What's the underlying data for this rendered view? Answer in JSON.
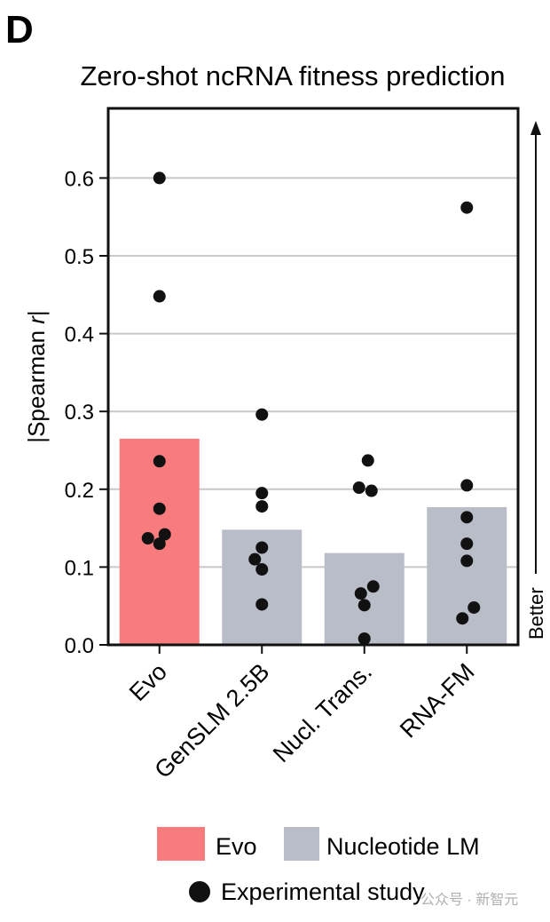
{
  "panel_label": "D",
  "watermark": "公众号 · 新智元",
  "chart_data": {
    "type": "bar",
    "title": "Zero-shot ncRNA fitness prediction",
    "ylabel_prefix": "|Spearman ",
    "ylabel_var": "r",
    "ylabel_suffix": "|",
    "xlabel": "",
    "ylim": [
      0,
      0.66
    ],
    "yticks": [
      "0.0",
      "0.1",
      "0.2",
      "0.3",
      "0.4",
      "0.5",
      "0.6"
    ],
    "grid": true,
    "categories": [
      "Evo",
      "GenSLM 2.5B",
      "Nucl. Trans.",
      "RNA-FM"
    ],
    "bar_values": [
      0.265,
      0.148,
      0.118,
      0.177
    ],
    "bar_groups": [
      "Evo",
      "Nucleotide LM",
      "Nucleotide LM",
      "Nucleotide LM"
    ],
    "points": [
      [
        0.6,
        0.448,
        0.236,
        0.175,
        0.142,
        0.137,
        0.13
      ],
      [
        0.296,
        0.195,
        0.178,
        0.125,
        0.11,
        0.097,
        0.052
      ],
      [
        0.237,
        0.202,
        0.198,
        0.075,
        0.066,
        0.051,
        0.008
      ],
      [
        0.562,
        0.205,
        0.164,
        0.13,
        0.108,
        0.048,
        0.034
      ]
    ],
    "colors": {
      "Evo": "#f87c7e",
      "Nucleotide LM": "#b9bdc8",
      "point": "#111111"
    },
    "annotation": "Better",
    "legend": {
      "position": "bottom",
      "entries": [
        {
          "label": "Evo",
          "group": "Evo"
        },
        {
          "label": "Nucleotide LM",
          "group": "Nucleotide LM"
        }
      ],
      "point_label": "Experimental study"
    }
  }
}
